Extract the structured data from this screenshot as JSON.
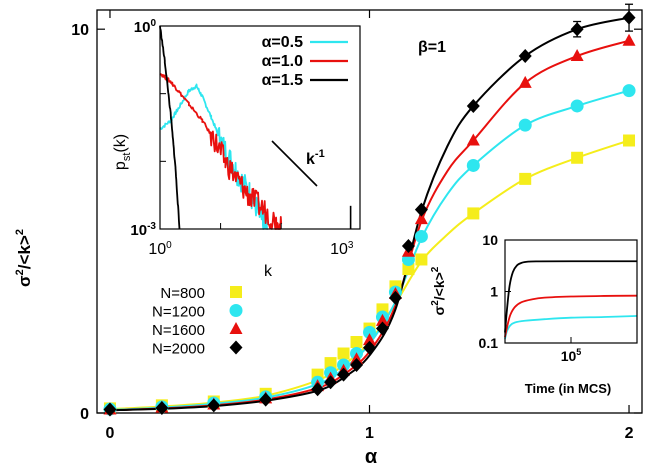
{
  "chart_data": [
    {
      "id": "main",
      "type": "scatter",
      "xlabel": "α",
      "ylabel_base": "σ",
      "ylabel_exp": "2",
      "ylabel_den": "/<k>",
      "ylabel_den_exp": "2",
      "annotation": "β=1",
      "xlim": [
        -0.05,
        2.05
      ],
      "ylim": [
        0,
        10.5
      ],
      "xticks": [
        "0",
        "1",
        "2"
      ],
      "yticks": [
        "0",
        "10"
      ],
      "x": [
        0,
        0.2,
        0.4,
        0.6,
        0.8,
        0.85,
        0.9,
        0.95,
        1.0,
        1.05,
        1.1,
        1.15,
        1.2,
        1.4,
        1.6,
        1.8,
        2.0
      ],
      "series": [
        {
          "name": "N=800",
          "color": "#f5ed1b",
          "marker": "square",
          "values": [
            0.12,
            0.2,
            0.3,
            0.5,
            1.0,
            1.3,
            1.55,
            1.85,
            2.2,
            2.7,
            3.3,
            3.75,
            4.0,
            5.2,
            6.1,
            6.65,
            7.1
          ],
          "curve": [
            [
              0,
              0.1
            ],
            [
              0.2,
              0.17
            ],
            [
              0.4,
              0.27
            ],
            [
              0.6,
              0.45
            ],
            [
              0.8,
              0.85
            ],
            [
              0.9,
              1.25
            ],
            [
              1.0,
              1.85
            ],
            [
              1.1,
              2.85
            ],
            [
              1.2,
              3.95
            ],
            [
              1.3,
              4.65
            ],
            [
              1.4,
              5.2
            ],
            [
              1.6,
              6.1
            ],
            [
              1.8,
              6.65
            ],
            [
              2.0,
              7.1
            ]
          ]
        },
        {
          "name": "N=1200",
          "color": "#2ee6ef",
          "marker": "circle",
          "values": [
            0.1,
            0.16,
            0.26,
            0.42,
            0.8,
            1.05,
            1.25,
            1.55,
            2.1,
            2.5,
            3.15,
            4.0,
            4.6,
            6.45,
            7.5,
            8.0,
            8.4
          ],
          "curve": [
            [
              0,
              0.08
            ],
            [
              0.2,
              0.14
            ],
            [
              0.4,
              0.24
            ],
            [
              0.6,
              0.4
            ],
            [
              0.8,
              0.75
            ],
            [
              0.9,
              1.15
            ],
            [
              1.0,
              1.8
            ],
            [
              1.1,
              2.9
            ],
            [
              1.2,
              4.55
            ],
            [
              1.3,
              5.7
            ],
            [
              1.4,
              6.45
            ],
            [
              1.6,
              7.5
            ],
            [
              1.8,
              8.0
            ],
            [
              2.0,
              8.4
            ]
          ]
        },
        {
          "name": "N=1600",
          "color": "#e8100e",
          "marker": "triangle",
          "values": [
            0.09,
            0.14,
            0.22,
            0.38,
            0.7,
            0.9,
            1.1,
            1.4,
            1.9,
            2.4,
            3.1,
            4.2,
            5.05,
            7.1,
            8.6,
            9.3,
            9.7
          ],
          "curve": [
            [
              0,
              0.07
            ],
            [
              0.2,
              0.12
            ],
            [
              0.4,
              0.2
            ],
            [
              0.6,
              0.35
            ],
            [
              0.8,
              0.65
            ],
            [
              0.9,
              1.0
            ],
            [
              1.0,
              1.6
            ],
            [
              1.1,
              2.8
            ],
            [
              1.2,
              5.0
            ],
            [
              1.3,
              6.3
            ],
            [
              1.4,
              7.1
            ],
            [
              1.6,
              8.6
            ],
            [
              1.8,
              9.3
            ],
            [
              2.0,
              9.7
            ]
          ]
        },
        {
          "name": "N=2000",
          "color": "#000000",
          "marker": "diamond",
          "values": [
            0.09,
            0.13,
            0.2,
            0.35,
            0.62,
            0.8,
            1.0,
            1.25,
            1.7,
            2.2,
            3.0,
            4.35,
            5.3,
            8.0,
            9.3,
            10.0,
            10.3
          ],
          "errors": [
            0,
            0,
            0,
            0,
            0,
            0,
            0,
            0,
            0,
            0,
            0,
            0,
            0,
            0,
            0,
            0.2,
            0.35
          ],
          "curve": [
            [
              0,
              0.07
            ],
            [
              0.2,
              0.11
            ],
            [
              0.4,
              0.18
            ],
            [
              0.6,
              0.32
            ],
            [
              0.8,
              0.58
            ],
            [
              0.9,
              0.92
            ],
            [
              1.0,
              1.5
            ],
            [
              1.1,
              2.7
            ],
            [
              1.2,
              5.25
            ],
            [
              1.3,
              6.95
            ],
            [
              1.4,
              8.0
            ],
            [
              1.6,
              9.3
            ],
            [
              1.8,
              10.0
            ],
            [
              2.0,
              10.3
            ]
          ]
        }
      ]
    },
    {
      "id": "inset_pst",
      "type": "line",
      "xlabel": "k",
      "ylabel_base": "p",
      "ylabel_sub": "st",
      "ylabel_rest": "(k)",
      "xscale": "log",
      "yscale": "log",
      "xlim": [
        1,
        2000
      ],
      "ylim": [
        0.001,
        1
      ],
      "xtick_labels": [
        {
          "base": "10",
          "exp": "0"
        },
        {
          "base": "10",
          "exp": "3"
        }
      ],
      "ytick_labels": [
        {
          "base": "10",
          "exp": "0"
        },
        {
          "base": "10",
          "exp": "-3"
        }
      ],
      "slope_label": {
        "base": "k",
        "exp": "-1"
      },
      "series": [
        {
          "name": "α=0.5",
          "color": "#2ee6ef",
          "points": [
            [
              1,
              0.03
            ],
            [
              1.5,
              0.04
            ],
            [
              2,
              0.06
            ],
            [
              3,
              0.11
            ],
            [
              4,
              0.13
            ],
            [
              5,
              0.09
            ],
            [
              7,
              0.045
            ],
            [
              10,
              0.02
            ],
            [
              15,
              0.01
            ],
            [
              20,
              0.006
            ],
            [
              30,
              0.0035
            ],
            [
              40,
              0.002
            ],
            [
              50,
              0.0012
            ],
            [
              60,
              0.001
            ]
          ]
        },
        {
          "name": "α=1.0",
          "color": "#e8100e",
          "points": [
            [
              1,
              0.2
            ],
            [
              1.5,
              0.15
            ],
            [
              2,
              0.11
            ],
            [
              3,
              0.07
            ],
            [
              5,
              0.04
            ],
            [
              8,
              0.02
            ],
            [
              12,
              0.01
            ],
            [
              20,
              0.005
            ],
            [
              30,
              0.003
            ],
            [
              50,
              0.002
            ],
            [
              80,
              0.0013
            ],
            [
              100,
              0.001
            ]
          ]
        },
        {
          "name": "α=1.5",
          "color": "#000000",
          "points": [
            [
              1,
              1.0
            ],
            [
              1.2,
              0.3
            ],
            [
              1.5,
              0.05
            ],
            [
              1.8,
              0.008
            ],
            [
              2.1,
              0.001
            ]
          ]
        }
      ]
    },
    {
      "id": "inset_time",
      "type": "line",
      "xlabel": "Time (in MCS)",
      "ylabel_base": "σ",
      "ylabel_exp": "2",
      "ylabel_den": "/<k>",
      "ylabel_den_exp": "2",
      "yscale": "log",
      "xlim": [
        0,
        200000
      ],
      "ylim": [
        0.1,
        10
      ],
      "xtick_labels": [
        {
          "base": "10",
          "exp": "5"
        }
      ],
      "ytick_labels": [
        "10",
        "1",
        "0.1"
      ],
      "series": [
        {
          "color": "#2ee6ef",
          "points": [
            [
              0,
              0.12
            ],
            [
              3000,
              0.17
            ],
            [
              8000,
              0.22
            ],
            [
              15000,
              0.25
            ],
            [
              30000,
              0.27
            ],
            [
              60000,
              0.29
            ],
            [
              100000,
              0.31
            ],
            [
              150000,
              0.32
            ],
            [
              200000,
              0.335
            ]
          ]
        },
        {
          "color": "#e8100e",
          "points": [
            [
              0,
              0.13
            ],
            [
              3000,
              0.2
            ],
            [
              8000,
              0.35
            ],
            [
              15000,
              0.5
            ],
            [
              25000,
              0.62
            ],
            [
              40000,
              0.7
            ],
            [
              60000,
              0.76
            ],
            [
              100000,
              0.8
            ],
            [
              150000,
              0.82
            ],
            [
              200000,
              0.83
            ]
          ]
        },
        {
          "color": "#000000",
          "points": [
            [
              0,
              0.16
            ],
            [
              3000,
              0.45
            ],
            [
              7000,
              1.3
            ],
            [
              12000,
              2.4
            ],
            [
              18000,
              3.2
            ],
            [
              25000,
              3.6
            ],
            [
              35000,
              3.8
            ],
            [
              50000,
              3.85
            ],
            [
              100000,
              3.87
            ],
            [
              200000,
              3.87
            ]
          ]
        }
      ]
    }
  ]
}
